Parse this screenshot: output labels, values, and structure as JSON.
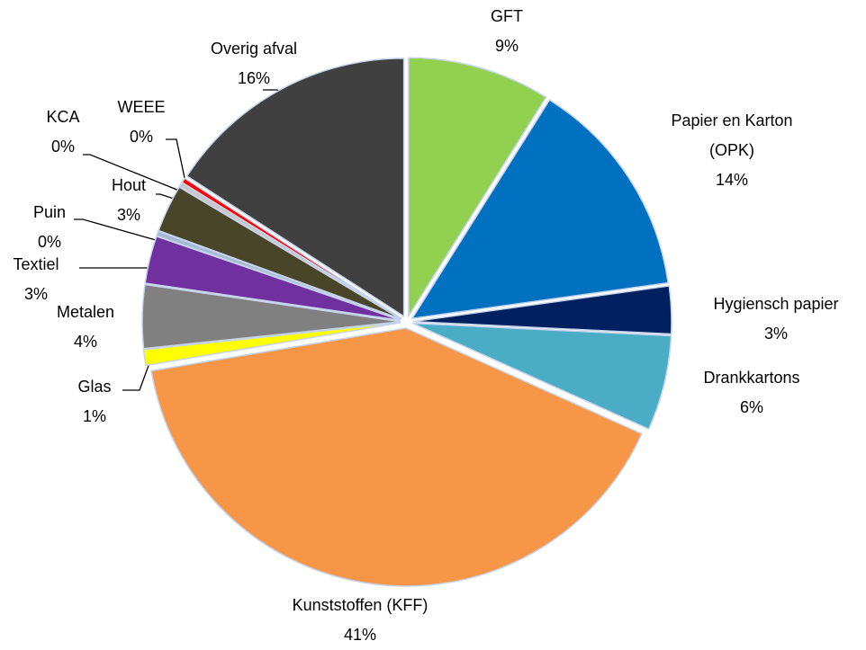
{
  "chart_data": {
    "type": "pie",
    "categories": [
      "GFT",
      "Papier en Karton (OPK)",
      "Hygiensch papier",
      "Drankkartons",
      "Kunststoffen (KFF)",
      "Glas",
      "Metalen",
      "Textiel",
      "Puin",
      "Hout",
      "KCA",
      "WEEE",
      "Overig afval"
    ],
    "values": [
      9,
      14,
      3,
      6,
      41,
      1,
      4,
      3,
      0.3,
      3,
      0.3,
      0.3,
      16
    ],
    "value_labels": [
      "9%",
      "14%",
      "3%",
      "6%",
      "41%",
      "1%",
      "4%",
      "3%",
      "0%",
      "3%",
      "0%",
      "0%",
      "16%"
    ],
    "colors": [
      "#92d050",
      "#0070c0",
      "#002060",
      "#4bacc6",
      "#f79646",
      "#ffff00",
      "#808080",
      "#7030a0",
      "#a6b8d8",
      "#494529",
      "#c8c8c8",
      "#ff0000",
      "#404040"
    ]
  }
}
